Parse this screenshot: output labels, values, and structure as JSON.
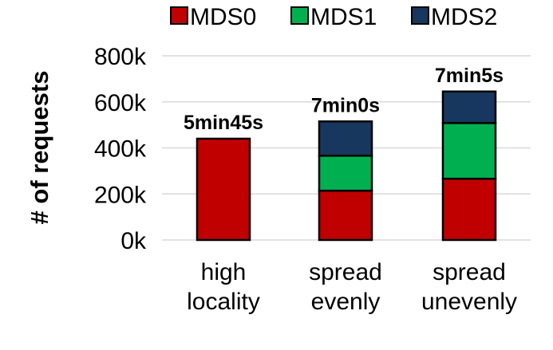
{
  "chart_data": {
    "type": "bar",
    "stacked": true,
    "categories": [
      [
        "high",
        "locality"
      ],
      [
        "spread",
        "evenly"
      ],
      [
        "spread",
        "unevenly"
      ]
    ],
    "series": [
      {
        "name": "MDS0",
        "color": "#c00000",
        "values": [
          440000,
          214000,
          266000
        ]
      },
      {
        "name": "MDS1",
        "color": "#00b050",
        "values": [
          0,
          152000,
          242000
        ]
      },
      {
        "name": "MDS2",
        "color": "#17375e",
        "values": [
          0,
          149000,
          137000
        ]
      }
    ],
    "data_labels": [
      "5min45s",
      "7min0s",
      "7min5s"
    ],
    "ylabel": "# of requests",
    "ylim": [
      0,
      800000
    ],
    "yticks": [
      "0k",
      "200k",
      "400k",
      "600k",
      "800k"
    ],
    "ytick_values": [
      0,
      200000,
      400000,
      600000,
      800000
    ],
    "grid": true,
    "legend_position": "top"
  }
}
